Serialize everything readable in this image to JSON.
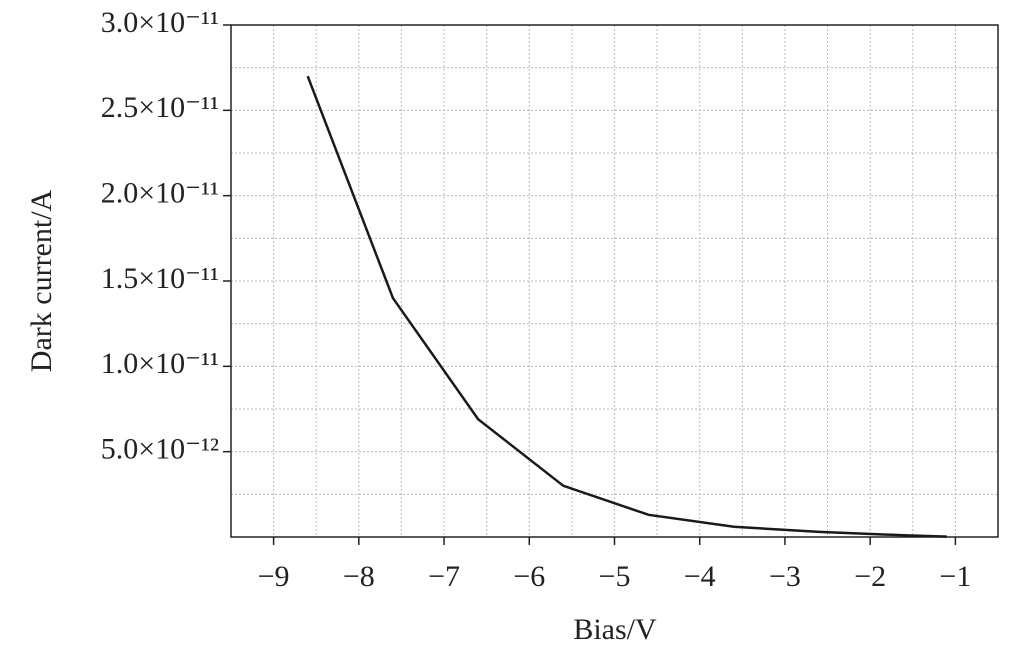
{
  "chart_data": {
    "type": "line",
    "x_label": "Bias/V",
    "y_label": "Dark current/A",
    "series": [
      {
        "name": "Dark current",
        "color": "#1a1a1a",
        "x": [
          -8.6,
          -7.6,
          -6.6,
          -5.6,
          -4.6,
          -3.6,
          -2.6,
          -1.6,
          -1.1
        ],
        "values": [
          2.7e-11,
          1.4e-11,
          6.9e-12,
          3e-12,
          1.3e-12,
          6e-13,
          3e-13,
          1e-13,
          2e-14
        ]
      }
    ],
    "xlim": [
      -9.5,
      -0.5
    ],
    "xticks": [
      {
        "value": -9,
        "label": "−9"
      },
      {
        "value": -8,
        "label": "−8"
      },
      {
        "value": -7,
        "label": "−7"
      },
      {
        "value": -6,
        "label": "−6"
      },
      {
        "value": -5,
        "label": "−5"
      },
      {
        "value": -4,
        "label": "−4"
      },
      {
        "value": -3,
        "label": "−3"
      },
      {
        "value": -2,
        "label": "−2"
      },
      {
        "value": -1,
        "label": "−1"
      }
    ],
    "xminor": [
      -8.5,
      -7.5,
      -6.5,
      -5.5,
      -4.5,
      -3.5,
      -2.5,
      -1.5
    ],
    "ylim": [
      0,
      3e-11
    ],
    "yticks": [
      {
        "value": 5e-12,
        "label": "5.0×10⁻¹²"
      },
      {
        "value": 1e-11,
        "label": "1.0×10⁻¹¹"
      },
      {
        "value": 1.5e-11,
        "label": "1.5×10⁻¹¹"
      },
      {
        "value": 2e-11,
        "label": "2.0×10⁻¹¹"
      },
      {
        "value": 2.5e-11,
        "label": "2.5×10⁻¹¹"
      },
      {
        "value": 3e-11,
        "label": "3.0×10⁻¹¹"
      }
    ],
    "yminor": [
      2.5e-12,
      7.5e-12,
      1.25e-11,
      1.75e-11,
      2.25e-11,
      2.75e-11
    ],
    "grid": true
  }
}
